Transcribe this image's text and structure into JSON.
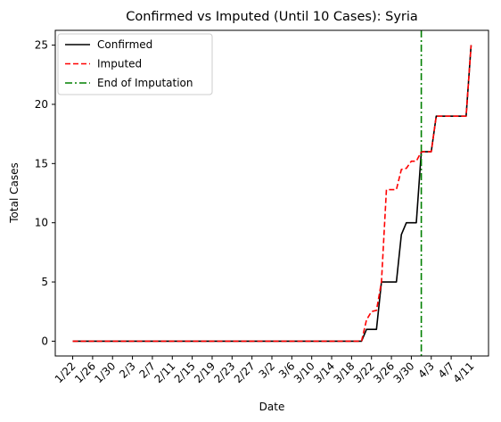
{
  "chart_data": {
    "type": "line",
    "title": "Confirmed vs Imputed (Until 10 Cases): Syria",
    "xlabel": "Date",
    "ylabel": "Total Cases",
    "x_tick_labels": [
      "1/22",
      "1/26",
      "1/30",
      "2/3",
      "2/7",
      "2/11",
      "2/15",
      "2/19",
      "2/23",
      "2/27",
      "3/2",
      "3/6",
      "3/10",
      "3/14",
      "3/18",
      "3/22",
      "3/26",
      "3/30",
      "4/3",
      "4/7",
      "4/11"
    ],
    "x_tick_positions": [
      0,
      4,
      8,
      12,
      16,
      20,
      24,
      28,
      32,
      36,
      40,
      44,
      48,
      52,
      56,
      60,
      64,
      68,
      72,
      76,
      80
    ],
    "y_ticks": [
      0,
      5,
      10,
      15,
      20,
      25
    ],
    "xlim": [
      -3.5,
      83.5
    ],
    "ylim": [
      -1.25,
      26.25
    ],
    "legend_location": "upper-left",
    "series": [
      {
        "name": "Confirmed",
        "color": "#000000",
        "style": "solid",
        "x": [
          0,
          58,
          59,
          60,
          61,
          62,
          63,
          64,
          65,
          66,
          67,
          68,
          69,
          70,
          71,
          72,
          73,
          74,
          75,
          76,
          77,
          78,
          79,
          80
        ],
        "y": [
          0,
          0,
          1,
          1,
          1,
          5,
          5,
          5,
          5,
          9,
          10,
          10,
          10,
          16,
          16,
          16,
          19,
          19,
          19,
          19,
          19,
          19,
          19,
          25
        ]
      },
      {
        "name": "Imputed",
        "color": "#ff0000",
        "style": "dashed",
        "x": [
          0,
          58,
          59,
          60,
          61,
          62,
          63,
          64,
          65,
          66,
          67,
          68,
          69,
          70,
          71,
          72,
          73,
          74,
          75,
          76,
          77,
          78,
          79,
          80
        ],
        "y": [
          0,
          0,
          1.8,
          2.5,
          2.6,
          5,
          12.8,
          12.8,
          12.8,
          14.5,
          14.6,
          15.2,
          15.2,
          16,
          16,
          16,
          19,
          19,
          19,
          19,
          19,
          19,
          19,
          25
        ]
      }
    ],
    "vline": {
      "name": "End of Imputation",
      "color": "#008000",
      "style": "dashdot",
      "x": 70
    }
  }
}
